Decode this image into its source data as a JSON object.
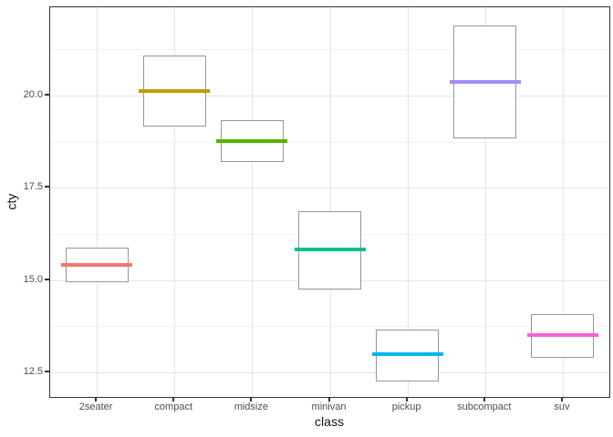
{
  "chart_data": {
    "type": "crossbar",
    "title": "",
    "xlabel": "class",
    "ylabel": "cty",
    "categories": [
      "2seater",
      "compact",
      "midsize",
      "minivan",
      "pickup",
      "subcompact",
      "suv"
    ],
    "series": [
      {
        "name": "2seater",
        "mean": 15.4,
        "lower": 14.93,
        "upper": 15.87,
        "color": "#F8766D"
      },
      {
        "name": "compact",
        "mean": 20.13,
        "lower": 19.17,
        "upper": 21.09,
        "color": "#C49A00"
      },
      {
        "name": "midsize",
        "mean": 18.76,
        "lower": 18.2,
        "upper": 19.34,
        "color": "#53B400"
      },
      {
        "name": "minivan",
        "mean": 15.82,
        "lower": 14.74,
        "upper": 16.87,
        "color": "#00C094"
      },
      {
        "name": "pickup",
        "mean": 13.0,
        "lower": 12.26,
        "upper": 13.66,
        "color": "#00B6EB"
      },
      {
        "name": "subcompact",
        "mean": 20.37,
        "lower": 18.83,
        "upper": 21.9,
        "color": "#A58AFF"
      },
      {
        "name": "suv",
        "mean": 13.5,
        "lower": 12.88,
        "upper": 14.08,
        "color": "#FB61D7"
      }
    ],
    "y_axis": {
      "ticks": [
        12.5,
        15.0,
        17.5,
        20.0
      ],
      "tick_labels": [
        "12.5",
        "15.0",
        "17.5",
        "20.0"
      ],
      "minor_ticks": [
        13.75,
        16.25,
        18.75,
        21.25
      ],
      "range": [
        11.83,
        22.39
      ]
    },
    "x_axis": {
      "tick_labels": [
        "2seater",
        "compact",
        "midsize",
        "minivan",
        "pickup",
        "subcompact",
        "suv"
      ]
    },
    "grid": true,
    "legend": "none",
    "style_colors": {
      "panel_border": "#333333",
      "grid_major": "#e4e4e4",
      "grid_minor": "#f2f2f2",
      "box_border": "#969696",
      "box_fill": "#ffffff",
      "axis_text": "#4d4d4d",
      "axis_title": "#111111"
    }
  }
}
